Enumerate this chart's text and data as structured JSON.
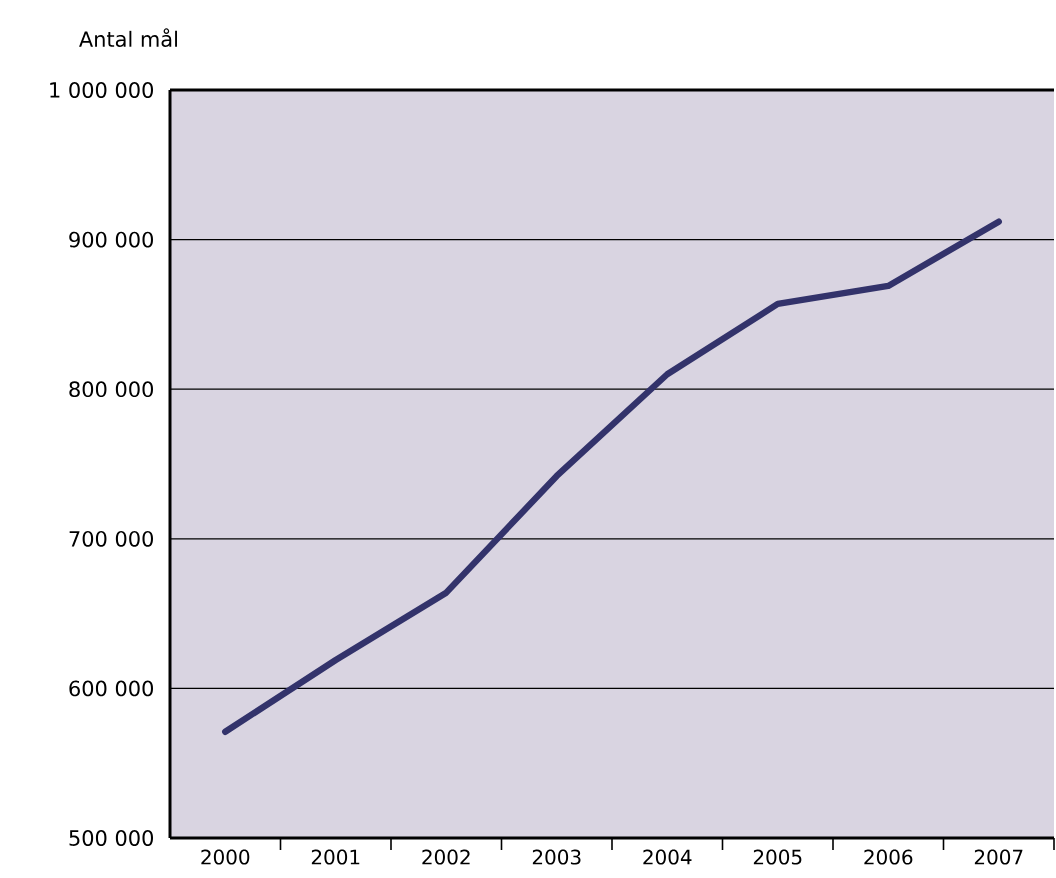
{
  "chart_data": {
    "type": "line",
    "ylabel": "Antal mål",
    "categories": [
      "2000",
      "2001",
      "2002",
      "2003",
      "2004",
      "2005",
      "2006",
      "2007"
    ],
    "series": [
      {
        "color": "#33336b",
        "values": [
          571000,
          619000,
          664000,
          742000,
          810000,
          857000,
          869000,
          912000
        ]
      }
    ],
    "ylim": [
      500000,
      1000000
    ],
    "yticks": [
      {
        "value": 500000,
        "label": "500 000"
      },
      {
        "value": 600000,
        "label": "600 000"
      },
      {
        "value": 700000,
        "label": "700 000"
      },
      {
        "value": 800000,
        "label": "800 000"
      },
      {
        "value": 900000,
        "label": "900 000"
      },
      {
        "value": 1000000,
        "label": "1 000 000"
      }
    ],
    "grid": "y",
    "legend": false,
    "marker": "none",
    "line_style": "solid"
  }
}
